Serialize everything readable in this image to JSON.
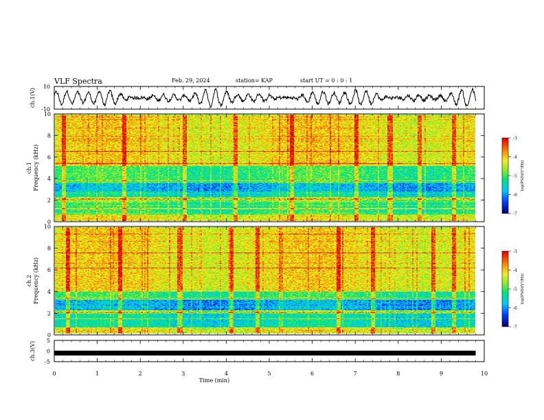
{
  "header": {
    "title": "VLF Spectra",
    "date": "Feb. 29, 2024",
    "station": "station= KAP",
    "start": "start  UT =  0 : 0 : 1"
  },
  "chart_data": [
    {
      "type": "line",
      "id": "ch1-waveform",
      "ylabel": "ch.1(V)",
      "ylim": [
        -10,
        10
      ],
      "yticks": [
        "10",
        "-10"
      ],
      "xlim": [
        0,
        10
      ],
      "x_extent_min": 9.8,
      "note_series": "dense noisy waveform envelope roughly between -8 and 8 V",
      "color": "#000000"
    },
    {
      "type": "heatmap",
      "id": "ch1-spectrogram",
      "ylabel": "ch.1\nFrequency (kHz)",
      "ylabel_top": "ch.1",
      "ylabel_bottom": "Frequency (kHz)",
      "ylim": [
        0,
        10
      ],
      "yticks": [
        "0",
        "2",
        "4",
        "6",
        "8",
        "10"
      ],
      "xlim": [
        0,
        10
      ],
      "colorbar": {
        "label": "log(PSD)(V²/Hz)",
        "ticks": [
          "-3",
          "-4",
          "-5",
          "-6",
          "-7"
        ],
        "range": [
          -7,
          -3
        ]
      },
      "bands": [
        {
          "f": [
            0,
            0.6
          ],
          "level": -4.3
        },
        {
          "f": [
            0.6,
            1.8
          ],
          "level": -5.2
        },
        {
          "f": [
            1.8,
            2.3
          ],
          "level": -4.8
        },
        {
          "f": [
            2.3,
            2.8
          ],
          "level": -5.5
        },
        {
          "f": [
            2.8,
            3.6
          ],
          "level": -5.9
        },
        {
          "f": [
            3.6,
            5.2
          ],
          "level": -5.1
        },
        {
          "f": [
            5.2,
            10
          ],
          "level": -4.2
        }
      ],
      "strong_lines_khz": [
        2.1,
        6.6,
        5.4,
        3.8,
        1.2
      ],
      "strong_bursts_min": [
        0.2,
        1.6,
        3.0,
        4.2,
        5.5,
        7.0,
        7.8,
        8.5,
        9.3
      ]
    },
    {
      "type": "heatmap",
      "id": "ch2-spectrogram",
      "ylabel": "ch.2\nFrequency (kHz)",
      "ylabel_top": "ch.2",
      "ylabel_bottom": "Frequency (kHz)",
      "ylim": [
        0,
        10
      ],
      "yticks": [
        "0",
        "2",
        "4",
        "6",
        "8",
        "10"
      ],
      "xlim": [
        0,
        10
      ],
      "colorbar": {
        "label": "log(PSD)(V²/Hz)",
        "ticks": [
          "-3",
          "-4",
          "-5",
          "-6",
          "-7"
        ],
        "range": [
          -7,
          -3
        ]
      },
      "bands": [
        {
          "f": [
            0,
            0.6
          ],
          "level": -4.4
        },
        {
          "f": [
            0.6,
            1.9
          ],
          "level": -5.5
        },
        {
          "f": [
            1.9,
            2.2
          ],
          "level": -4.7
        },
        {
          "f": [
            2.2,
            3.2
          ],
          "level": -6.0
        },
        {
          "f": [
            3.2,
            4.0
          ],
          "level": -5.2
        },
        {
          "f": [
            4.0,
            10
          ],
          "level": -4.2
        }
      ],
      "strong_lines_khz": [
        2.0,
        6.2,
        7.6,
        3.3,
        1.4
      ],
      "strong_bursts_min": [
        0.3,
        1.5,
        2.9,
        4.1,
        4.7,
        6.6,
        7.4,
        8.8,
        9.3
      ]
    },
    {
      "type": "line",
      "id": "ch3-signal",
      "ylabel": "ch.3(V)",
      "ylim": [
        -5,
        5
      ],
      "yticks": [
        "5",
        "0",
        "-5"
      ],
      "xlim": [
        0,
        10
      ],
      "xticks": [
        "0",
        "1",
        "2",
        "3",
        "4",
        "5",
        "6",
        "7",
        "8",
        "9",
        "10"
      ],
      "xlabel": "Time (min)",
      "series": [
        {
          "x": [
            0,
            9.8
          ],
          "y": [
            0,
            0
          ]
        }
      ],
      "note_series": "thick flat trace near 0 V",
      "color": "#000000"
    }
  ]
}
